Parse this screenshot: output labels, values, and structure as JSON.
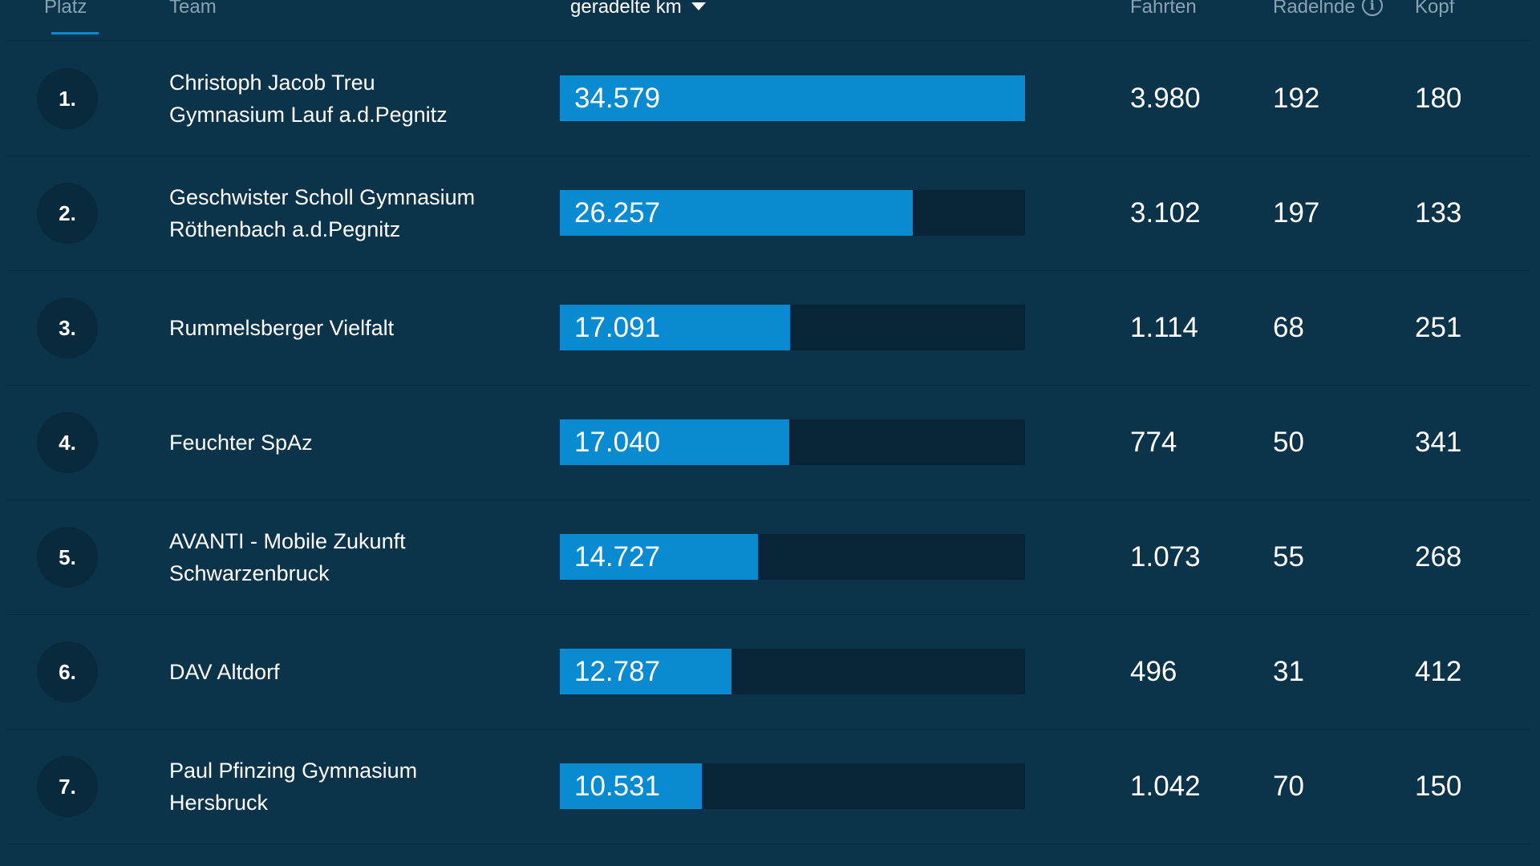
{
  "header": {
    "platz": "Platz",
    "team": "Team",
    "km": "geradelte km",
    "km_sort_icon": "sort-desc-icon",
    "fahrten": "Fahrten",
    "radelnde": "Radelnde",
    "radelnde_info_icon": "info-icon",
    "radelnde_info_glyph": "i",
    "kopf": "Kopf"
  },
  "colors": {
    "background": "#0b3349",
    "bar_fill": "#0a8ad0",
    "bar_track": "#072537",
    "rank_circle": "#082a3c",
    "header_text": "#8aa3b3"
  },
  "km_max": 34579,
  "rows": [
    {
      "rank": "1.",
      "team_line1": "Christoph Jacob Treu",
      "team_line2": "Gymnasium Lauf a.d.Pegnitz",
      "km": "34.579",
      "km_value": 34579,
      "fahrten": "3.980",
      "radelnde": "192",
      "kopf": "180"
    },
    {
      "rank": "2.",
      "team_line1": "Geschwister Scholl Gymnasium",
      "team_line2": "Röthenbach a.d.Pegnitz",
      "km": "26.257",
      "km_value": 26257,
      "fahrten": "3.102",
      "radelnde": "197",
      "kopf": "133"
    },
    {
      "rank": "3.",
      "team_line1": "Rummelsberger Vielfalt",
      "team_line2": "",
      "km": "17.091",
      "km_value": 17091,
      "fahrten": "1.114",
      "radelnde": "68",
      "kopf": "251"
    },
    {
      "rank": "4.",
      "team_line1": "Feuchter SpAz",
      "team_line2": "",
      "km": "17.040",
      "km_value": 17040,
      "fahrten": "774",
      "radelnde": "50",
      "kopf": "341"
    },
    {
      "rank": "5.",
      "team_line1": "AVANTI - Mobile Zukunft",
      "team_line2": "Schwarzenbruck",
      "km": "14.727",
      "km_value": 14727,
      "fahrten": "1.073",
      "radelnde": "55",
      "kopf": "268"
    },
    {
      "rank": "6.",
      "team_line1": "DAV Altdorf",
      "team_line2": "",
      "km": "12.787",
      "km_value": 12787,
      "fahrten": "496",
      "radelnde": "31",
      "kopf": "412"
    },
    {
      "rank": "7.",
      "team_line1": "Paul Pfinzing Gymnasium",
      "team_line2": "Hersbruck",
      "km": "10.531",
      "km_value": 10531,
      "fahrten": "1.042",
      "radelnde": "70",
      "kopf": "150"
    }
  ]
}
